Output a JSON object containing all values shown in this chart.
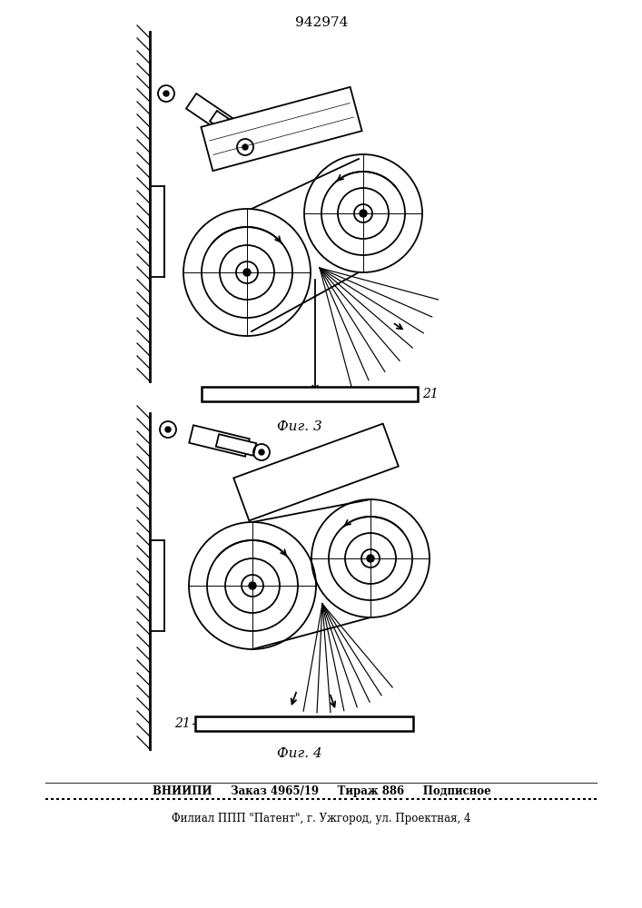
{
  "patent_number": "942974",
  "fig3_label": "Фиг. 3",
  "fig4_label": "Фиг. 4",
  "label_21": "21",
  "footer_line1": "ВНИИПИ     Заказ 4965/19     Тираж 886     Подписное",
  "footer_line2": "Филиал ППП \"Патент\", г. Ужгород, ул. Проектная, 4",
  "bg_color": "#ffffff",
  "line_color": "#000000"
}
